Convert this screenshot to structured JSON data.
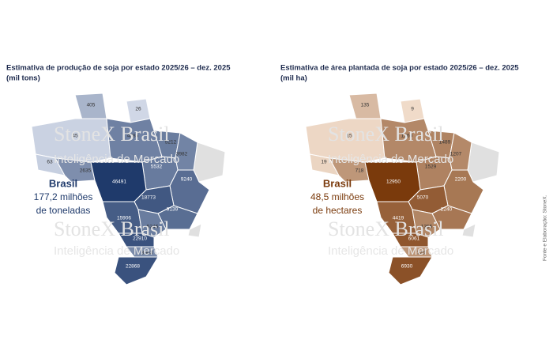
{
  "maps": [
    {
      "title": "Estimativa de produção de soja por estado 2025/26 – dez. 2025",
      "unit": "(mil tons)",
      "total": {
        "label": "Brasil",
        "value": "177,2 milhões",
        "unit": "de toneladas"
      },
      "values": [
        405,
        26,
        45,
        4385,
        63,
        2635,
        5212,
        3982,
        5532,
        46491,
        9240,
        18773,
        9139,
        15906,
        5246,
        22910,
        3003,
        22868
      ]
    },
    {
      "title": "Estimativa de área plantada de soja por estado 2025/26 – dez. 2025",
      "unit": "(mil ha)",
      "total": {
        "label": "Brasil",
        "value": "48,5 milhões",
        "unit": "de hectares"
      },
      "values": [
        135,
        9,
        15,
        1260,
        19,
        718,
        1489,
        1207,
        1529,
        12950,
        2200,
        5070,
        2240,
        4419,
        1355,
        6061,
        770,
        6930
      ]
    }
  ],
  "watermark": {
    "brand": "StoneX Brasil",
    "sub": "Inteligência de Mercado"
  },
  "source": "Fonte e Elaboração: StoneX."
}
